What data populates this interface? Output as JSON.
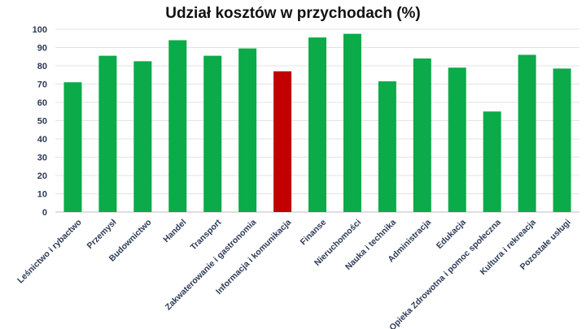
{
  "chart_data": {
    "type": "bar",
    "title": "Udział kosztów w przychodach (%)",
    "xlabel": "",
    "ylabel": "",
    "ylim": [
      0,
      100
    ],
    "yticks": [
      0,
      10,
      20,
      30,
      40,
      50,
      60,
      70,
      80,
      90,
      100
    ],
    "grid": true,
    "legend": "none",
    "categories": [
      "Leśnictwo i rybactwo",
      "Przemysł",
      "Budownictwo",
      "Handel",
      "Transport",
      "Zakwaterowanie i gastronomia",
      "Informacja i komunikacja",
      "Finanse",
      "Nieruchomości",
      "Nauka i technika",
      "Administracja",
      "Edukacja",
      "Opieka Zdrowotna i pomoc społeczna",
      "Kultura i rekreacja",
      "Pozostałe usługi"
    ],
    "values": [
      71,
      85.5,
      82.5,
      94,
      85.5,
      89.5,
      77,
      95.5,
      97.5,
      71.5,
      84,
      79,
      55,
      86,
      78.5
    ],
    "colors": {
      "default": "#0aab48",
      "highlight": "#c20000"
    },
    "highlight_index": 6
  }
}
